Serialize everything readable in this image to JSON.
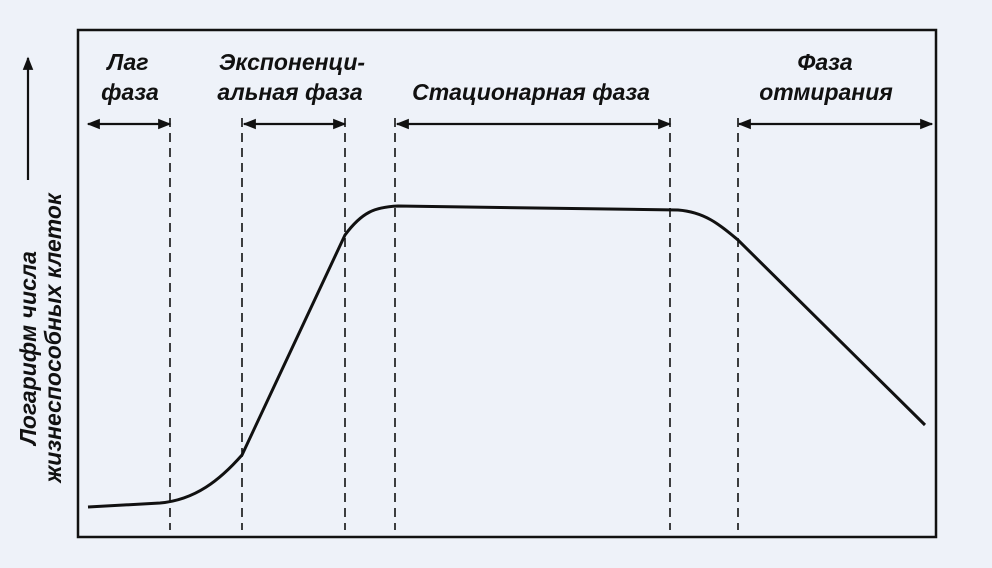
{
  "phases": [
    {
      "label": [
        "Лаг",
        "фаза"
      ]
    },
    {
      "label": [
        "Экспоненци-",
        "альная фаза"
      ]
    },
    {
      "label": [
        "Стационарная фаза"
      ]
    },
    {
      "label": [
        "Фаза",
        "отмирания"
      ]
    }
  ],
  "y_axis": {
    "label": [
      "Логарифм числа",
      "жизнеспособных клеток"
    ]
  }
}
